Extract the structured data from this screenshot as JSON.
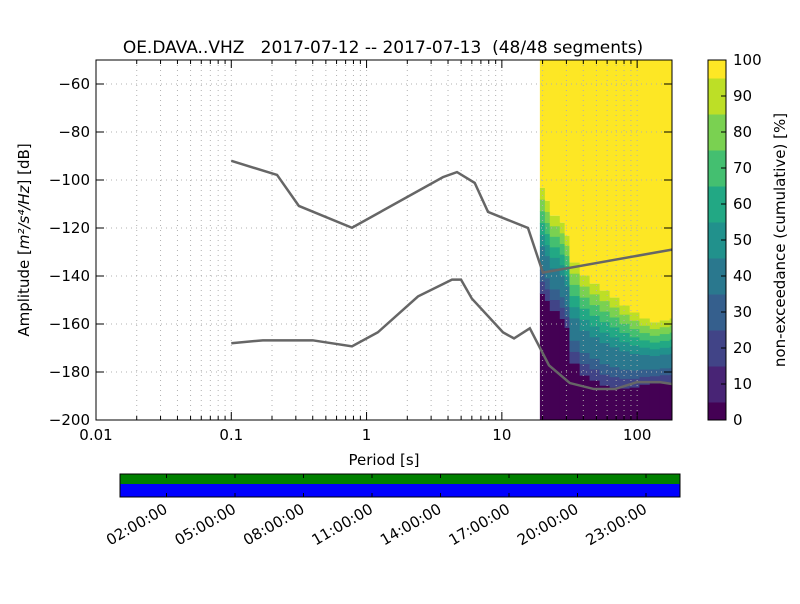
{
  "chart_data": {
    "type": "heatmap",
    "title": "OE.DAVA..VHZ   2017-07-12 -- 2017-07-13  (48/48 segments)",
    "xlabel": "Period [s]",
    "ylabel_prefix": "Amplitude [",
    "ylabel_math": "m²/s⁴/Hz",
    "ylabel_suffix": "] [dB]",
    "xscale": "log",
    "xlim": [
      0.01,
      181
    ],
    "ylim": [
      -200,
      -50
    ],
    "xticks": [
      {
        "v": 0.01,
        "label": "0.01"
      },
      {
        "v": 0.1,
        "label": "0.1"
      },
      {
        "v": 1,
        "label": "1"
      },
      {
        "v": 10,
        "label": "10"
      },
      {
        "v": 100,
        "label": "100"
      }
    ],
    "yticks": [
      -60,
      -80,
      -100,
      -120,
      -140,
      -160,
      -180,
      -200
    ],
    "ytick_labels": [
      "−60",
      "−80",
      "−100",
      "−120",
      "−140",
      "−160",
      "−180",
      "−200"
    ],
    "grid": true,
    "colorbar": {
      "label": "non-exceedance (cumulative) [%]",
      "range": [
        0,
        100
      ],
      "ticks": [
        "0",
        "10",
        "20",
        "30",
        "40",
        "50",
        "60",
        "70",
        "80",
        "90",
        "100"
      ],
      "colormap": "viridis"
    },
    "noise_models": [
      {
        "name": "upper",
        "period": [
          0.1,
          0.218,
          0.316,
          0.78,
          3.67,
          4.66,
          6.3,
          7.9,
          15.6,
          20.1,
          181
        ],
        "db": [
          -92,
          -97.9,
          -110.8,
          -119.9,
          -98.8,
          -96.7,
          -101.2,
          -113.3,
          -120,
          -138.6,
          -129
        ]
      },
      {
        "name": "lower",
        "period": [
          0.1,
          0.171,
          0.4,
          0.78,
          1.21,
          2.4,
          4.28,
          4.99,
          6.0,
          10.2,
          12.3,
          16.1,
          22.3,
          31.8,
          48,
          68.6,
          100,
          147,
          181
        ],
        "db": [
          -168,
          -166.8,
          -166.8,
          -169.3,
          -163.5,
          -148.5,
          -141.5,
          -141.5,
          -149.4,
          -163.5,
          -166,
          -161.8,
          -177.2,
          -184.6,
          -187.1,
          -187.1,
          -184.2,
          -184.2,
          -185
        ]
      }
    ],
    "heatmap_columns": [
      {
        "period": 19.1,
        "db_100pct": -103.3,
        "db_0pct": -147.3
      },
      {
        "period": 20.8,
        "db_100pct": -108.7,
        "db_0pct": -150.2
      },
      {
        "period": 22.6,
        "db_100pct": -114.9,
        "db_0pct": -154.4
      },
      {
        "period": 26.8,
        "db_100pct": -117.8,
        "db_0pct": -157.7
      },
      {
        "period": 29.1,
        "db_100pct": -123.2,
        "db_0pct": -161.4
      },
      {
        "period": 31.6,
        "db_100pct": -134.4,
        "db_0pct": -176.3
      },
      {
        "period": 37.6,
        "db_100pct": -139.8,
        "db_0pct": -181.3
      },
      {
        "period": 44.5,
        "db_100pct": -143.2,
        "db_0pct": -183.4
      },
      {
        "period": 52.8,
        "db_100pct": -146.1,
        "db_0pct": -185.5
      },
      {
        "period": 62.6,
        "db_100pct": -149.0,
        "db_0pct": -186.3
      },
      {
        "period": 74,
        "db_100pct": -152.3,
        "db_0pct": -186.7
      },
      {
        "period": 88,
        "db_100pct": -155.2,
        "db_0pct": -186.3
      },
      {
        "period": 104,
        "db_100pct": -157.7,
        "db_0pct": -185.1
      },
      {
        "period": 124,
        "db_100pct": -159.3,
        "db_0pct": -184.6
      },
      {
        "period": 147,
        "db_100pct": -158.5,
        "db_0pct": -184.2
      },
      {
        "period": 174,
        "db_100pct": -157.7,
        "db_0pct": -184.2
      }
    ],
    "heatmap_end_period": 181,
    "timeline": {
      "colors": {
        "top": "#008000",
        "bottom": "#0000ff"
      },
      "tick_labels": [
        "02:00:00",
        "05:00:00",
        "08:00:00",
        "11:00:00",
        "14:00:00",
        "17:00:00",
        "20:00:00",
        "23:00:00"
      ]
    }
  }
}
